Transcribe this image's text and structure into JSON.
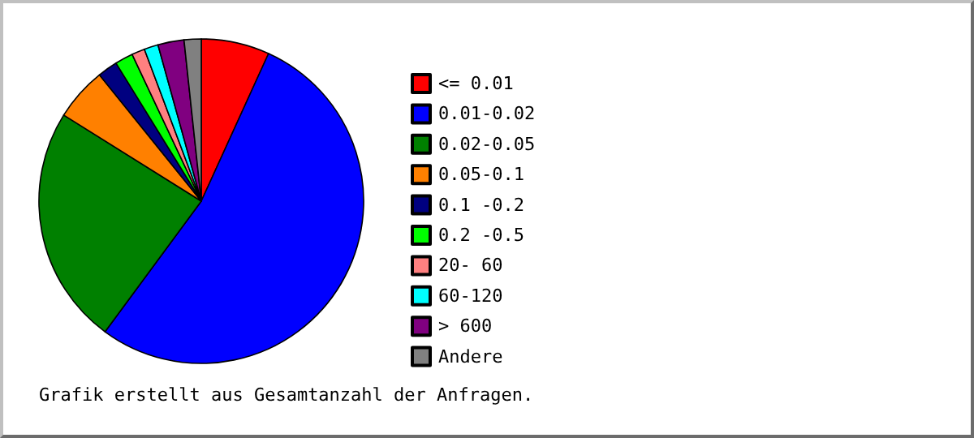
{
  "chart_data": {
    "type": "pie",
    "categories": [
      "<= 0.01",
      "0.01-0.02",
      "0.02-0.05",
      "0.05-0.1",
      "0.1 -0.2",
      "0.2 -0.5",
      "20- 60",
      "60-120",
      "> 600",
      "Andere"
    ],
    "values": [
      6.8,
      53.3,
      23.8,
      5.3,
      2.0,
      1.8,
      1.3,
      1.4,
      2.6,
      1.7
    ],
    "colors": [
      "#ff0000",
      "#0000ff",
      "#008000",
      "#ff8000",
      "#000080",
      "#00ff00",
      "#ff8080",
      "#00ffff",
      "#800080",
      "#808080"
    ],
    "legend": "right",
    "annotations": [
      "Grafik erstellt aus Gesamtanzahl der Anfragen."
    ]
  }
}
